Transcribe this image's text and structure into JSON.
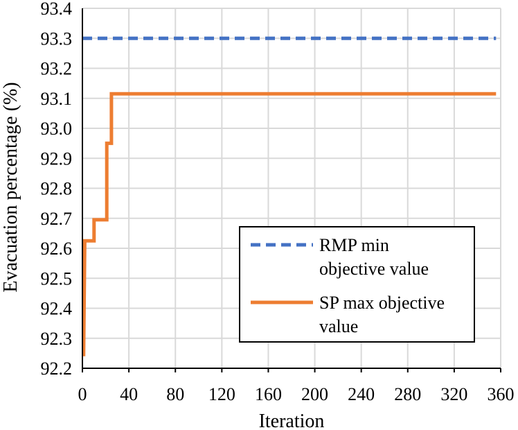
{
  "chart_data": {
    "type": "line",
    "title": "",
    "xlabel": "Iteration",
    "ylabel": "Evacuation percentage (%)",
    "xlim": [
      0,
      360
    ],
    "ylim": [
      92.2,
      93.4
    ],
    "grid": true,
    "legend_position": "bottom-right",
    "x_ticks": [
      "0",
      "40",
      "80",
      "120",
      "160",
      "200",
      "240",
      "280",
      "320",
      "360"
    ],
    "y_ticks": [
      "92.2",
      "92.3",
      "92.4",
      "92.5",
      "92.6",
      "92.7",
      "92.8",
      "92.9",
      "93.0",
      "93.1",
      "93.2",
      "93.3",
      "93.4"
    ],
    "series": [
      {
        "name": "RMP min objective value",
        "legend_lines": [
          "RMP min",
          "objective value"
        ],
        "color": "#4472C4",
        "style": "dashed",
        "x": [
          0,
          356
        ],
        "y": [
          93.3,
          93.3
        ]
      },
      {
        "name": "SP max objective value",
        "legend_lines": [
          "SP max objective",
          "value"
        ],
        "color": "#ED7D31",
        "style": "solid",
        "x": [
          1,
          2,
          10,
          10,
          21,
          21,
          25,
          25,
          356
        ],
        "y": [
          92.24,
          92.625,
          92.625,
          92.695,
          92.695,
          92.95,
          92.95,
          93.115,
          93.115
        ]
      }
    ]
  }
}
